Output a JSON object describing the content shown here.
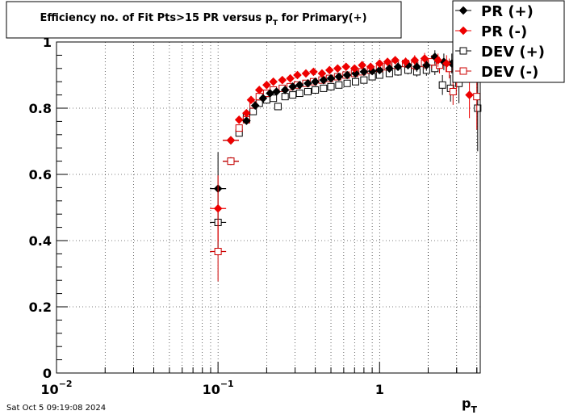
{
  "timestamp": "Sat Oct  5 09:19:08 2024",
  "chart_data": {
    "type": "scatter",
    "title": "Efficiency no. of Fit Pts>15 PR versus p",
    "title_sub": "T",
    "title_rest": " for Primary(+)",
    "xlabel": "p",
    "xlabel_sub": "T",
    "ylabel": "",
    "xscale": "log",
    "xlim": [
      0.01,
      4.2
    ],
    "ylim": [
      0,
      1.0
    ],
    "grid": true,
    "legend_position": "top-right",
    "x_ticks": [
      {
        "base": "10",
        "exp": "−2",
        "value": 0.01
      },
      {
        "base": "10",
        "exp": "−1",
        "value": 0.1
      },
      {
        "base": "1",
        "exp": "",
        "value": 1
      }
    ],
    "y_ticks": [
      {
        "label": "0",
        "value": 0
      },
      {
        "label": "0.2",
        "value": 0.2
      },
      {
        "label": "0.4",
        "value": 0.4
      },
      {
        "label": "0.6",
        "value": 0.6
      },
      {
        "label": "0.8",
        "value": 0.8
      },
      {
        "label": "1",
        "value": 1.0
      }
    ],
    "series": [
      {
        "name": "PR (+)",
        "color": "#000000",
        "marker": "diamond",
        "filled": true,
        "points": [
          {
            "x": 0.1,
            "y": 0.557,
            "err": 0.11
          },
          {
            "x": 0.12,
            "y": 0.703,
            "err": 0.012
          },
          {
            "x": 0.15,
            "y": 0.762,
            "err": 0.01
          },
          {
            "x": 0.17,
            "y": 0.808,
            "err": 0.01
          },
          {
            "x": 0.19,
            "y": 0.83,
            "err": 0.008
          },
          {
            "x": 0.21,
            "y": 0.845,
            "err": 0.008
          },
          {
            "x": 0.23,
            "y": 0.85,
            "err": 0.008
          },
          {
            "x": 0.26,
            "y": 0.855,
            "err": 0.008
          },
          {
            "x": 0.29,
            "y": 0.865,
            "err": 0.007
          },
          {
            "x": 0.32,
            "y": 0.87,
            "err": 0.007
          },
          {
            "x": 0.36,
            "y": 0.875,
            "err": 0.007
          },
          {
            "x": 0.4,
            "y": 0.88,
            "err": 0.007
          },
          {
            "x": 0.45,
            "y": 0.885,
            "err": 0.007
          },
          {
            "x": 0.5,
            "y": 0.89,
            "err": 0.007
          },
          {
            "x": 0.56,
            "y": 0.895,
            "err": 0.008
          },
          {
            "x": 0.63,
            "y": 0.9,
            "err": 0.008
          },
          {
            "x": 0.71,
            "y": 0.905,
            "err": 0.008
          },
          {
            "x": 0.8,
            "y": 0.91,
            "err": 0.009
          },
          {
            "x": 0.9,
            "y": 0.912,
            "err": 0.009
          },
          {
            "x": 1.0,
            "y": 0.915,
            "err": 0.01
          },
          {
            "x": 1.15,
            "y": 0.92,
            "err": 0.011
          },
          {
            "x": 1.3,
            "y": 0.925,
            "err": 0.012
          },
          {
            "x": 1.5,
            "y": 0.93,
            "err": 0.013
          },
          {
            "x": 1.7,
            "y": 0.925,
            "err": 0.015
          },
          {
            "x": 1.95,
            "y": 0.93,
            "err": 0.017
          },
          {
            "x": 2.2,
            "y": 0.955,
            "err": 0.02
          },
          {
            "x": 2.5,
            "y": 0.94,
            "err": 0.025
          },
          {
            "x": 2.8,
            "y": 0.935,
            "err": 0.03
          },
          {
            "x": 3.2,
            "y": 0.95,
            "err": 0.04
          }
        ]
      },
      {
        "name": "PR (-)",
        "color": "#ee0000",
        "marker": "diamond",
        "filled": true,
        "points": [
          {
            "x": 0.1,
            "y": 0.497,
            "err": 0.1
          },
          {
            "x": 0.12,
            "y": 0.703,
            "err": 0.012
          },
          {
            "x": 0.135,
            "y": 0.765,
            "err": 0.01
          },
          {
            "x": 0.15,
            "y": 0.785,
            "err": 0.01
          },
          {
            "x": 0.16,
            "y": 0.825,
            "err": 0.009
          },
          {
            "x": 0.18,
            "y": 0.855,
            "err": 0.008
          },
          {
            "x": 0.2,
            "y": 0.87,
            "err": 0.008
          },
          {
            "x": 0.22,
            "y": 0.88,
            "err": 0.008
          },
          {
            "x": 0.25,
            "y": 0.885,
            "err": 0.008
          },
          {
            "x": 0.28,
            "y": 0.89,
            "err": 0.007
          },
          {
            "x": 0.31,
            "y": 0.9,
            "err": 0.007
          },
          {
            "x": 0.35,
            "y": 0.905,
            "err": 0.007
          },
          {
            "x": 0.39,
            "y": 0.91,
            "err": 0.007
          },
          {
            "x": 0.44,
            "y": 0.905,
            "err": 0.007
          },
          {
            "x": 0.49,
            "y": 0.915,
            "err": 0.007
          },
          {
            "x": 0.55,
            "y": 0.92,
            "err": 0.008
          },
          {
            "x": 0.62,
            "y": 0.925,
            "err": 0.008
          },
          {
            "x": 0.7,
            "y": 0.92,
            "err": 0.008
          },
          {
            "x": 0.78,
            "y": 0.93,
            "err": 0.009
          },
          {
            "x": 0.88,
            "y": 0.925,
            "err": 0.009
          },
          {
            "x": 1.0,
            "y": 0.935,
            "err": 0.01
          },
          {
            "x": 1.12,
            "y": 0.94,
            "err": 0.011
          },
          {
            "x": 1.25,
            "y": 0.945,
            "err": 0.012
          },
          {
            "x": 1.45,
            "y": 0.94,
            "err": 0.013
          },
          {
            "x": 1.65,
            "y": 0.945,
            "err": 0.015
          },
          {
            "x": 1.9,
            "y": 0.95,
            "err": 0.017
          },
          {
            "x": 2.3,
            "y": 0.945,
            "err": 0.02
          },
          {
            "x": 2.6,
            "y": 0.935,
            "err": 0.025
          },
          {
            "x": 3.0,
            "y": 0.9,
            "err": 0.04
          },
          {
            "x": 3.6,
            "y": 0.84,
            "err": 0.07
          }
        ]
      },
      {
        "name": "DEV (+)",
        "color": "#000000",
        "marker": "square",
        "filled": false,
        "points": [
          {
            "x": 0.1,
            "y": 0.455,
            "err": 0.1
          },
          {
            "x": 0.12,
            "y": 0.64,
            "err": 0.012
          },
          {
            "x": 0.135,
            "y": 0.725,
            "err": 0.01
          },
          {
            "x": 0.15,
            "y": 0.775,
            "err": 0.01
          },
          {
            "x": 0.165,
            "y": 0.79,
            "err": 0.009
          },
          {
            "x": 0.18,
            "y": 0.815,
            "err": 0.008
          },
          {
            "x": 0.2,
            "y": 0.825,
            "err": 0.008
          },
          {
            "x": 0.22,
            "y": 0.83,
            "err": 0.008
          },
          {
            "x": 0.235,
            "y": 0.805,
            "err": 0.008
          },
          {
            "x": 0.26,
            "y": 0.835,
            "err": 0.008
          },
          {
            "x": 0.29,
            "y": 0.84,
            "err": 0.007
          },
          {
            "x": 0.32,
            "y": 0.845,
            "err": 0.007
          },
          {
            "x": 0.36,
            "y": 0.85,
            "err": 0.007
          },
          {
            "x": 0.4,
            "y": 0.855,
            "err": 0.007
          },
          {
            "x": 0.45,
            "y": 0.86,
            "err": 0.007
          },
          {
            "x": 0.5,
            "y": 0.865,
            "err": 0.007
          },
          {
            "x": 0.56,
            "y": 0.87,
            "err": 0.008
          },
          {
            "x": 0.63,
            "y": 0.875,
            "err": 0.008
          },
          {
            "x": 0.71,
            "y": 0.88,
            "err": 0.008
          },
          {
            "x": 0.8,
            "y": 0.885,
            "err": 0.009
          },
          {
            "x": 0.9,
            "y": 0.895,
            "err": 0.009
          },
          {
            "x": 1.0,
            "y": 0.9,
            "err": 0.01
          },
          {
            "x": 1.15,
            "y": 0.905,
            "err": 0.011
          },
          {
            "x": 1.3,
            "y": 0.91,
            "err": 0.012
          },
          {
            "x": 1.5,
            "y": 0.915,
            "err": 0.013
          },
          {
            "x": 1.7,
            "y": 0.91,
            "err": 0.015
          },
          {
            "x": 1.95,
            "y": 0.915,
            "err": 0.017
          },
          {
            "x": 2.2,
            "y": 0.92,
            "err": 0.02
          },
          {
            "x": 2.45,
            "y": 0.87,
            "err": 0.03
          },
          {
            "x": 2.75,
            "y": 0.86,
            "err": 0.04
          },
          {
            "x": 3.1,
            "y": 0.875,
            "err": 0.06
          },
          {
            "x": 4.05,
            "y": 0.8,
            "err": 0.13
          }
        ]
      },
      {
        "name": "DEV (-)",
        "color": "#cc0000",
        "marker": "square",
        "filled": false,
        "points": [
          {
            "x": 0.1,
            "y": 0.367,
            "err": 0.09
          },
          {
            "x": 0.12,
            "y": 0.64,
            "err": 0.012
          },
          {
            "x": 0.135,
            "y": 0.74,
            "err": 0.01
          },
          {
            "x": 0.15,
            "y": 0.765,
            "err": 0.01
          },
          {
            "x": 0.165,
            "y": 0.81,
            "err": 0.009
          },
          {
            "x": 0.18,
            "y": 0.835,
            "err": 0.008
          },
          {
            "x": 0.2,
            "y": 0.845,
            "err": 0.008
          },
          {
            "x": 0.22,
            "y": 0.855,
            "err": 0.008
          },
          {
            "x": 0.25,
            "y": 0.86,
            "err": 0.008
          },
          {
            "x": 0.28,
            "y": 0.865,
            "err": 0.007
          },
          {
            "x": 0.31,
            "y": 0.87,
            "err": 0.007
          },
          {
            "x": 0.35,
            "y": 0.875,
            "err": 0.007
          },
          {
            "x": 0.39,
            "y": 0.88,
            "err": 0.007
          },
          {
            "x": 0.44,
            "y": 0.885,
            "err": 0.007
          },
          {
            "x": 0.49,
            "y": 0.89,
            "err": 0.007
          },
          {
            "x": 0.55,
            "y": 0.895,
            "err": 0.008
          },
          {
            "x": 0.62,
            "y": 0.9,
            "err": 0.008
          },
          {
            "x": 0.7,
            "y": 0.905,
            "err": 0.008
          },
          {
            "x": 0.78,
            "y": 0.91,
            "err": 0.009
          },
          {
            "x": 0.88,
            "y": 0.915,
            "err": 0.009
          },
          {
            "x": 1.0,
            "y": 0.92,
            "err": 0.01
          },
          {
            "x": 1.12,
            "y": 0.925,
            "err": 0.011
          },
          {
            "x": 1.25,
            "y": 0.93,
            "err": 0.012
          },
          {
            "x": 1.45,
            "y": 0.935,
            "err": 0.013
          },
          {
            "x": 1.65,
            "y": 0.93,
            "err": 0.015
          },
          {
            "x": 1.9,
            "y": 0.935,
            "err": 0.017
          },
          {
            "x": 2.1,
            "y": 0.94,
            "err": 0.02
          },
          {
            "x": 2.35,
            "y": 0.93,
            "err": 0.025
          },
          {
            "x": 2.7,
            "y": 0.92,
            "err": 0.03
          },
          {
            "x": 2.85,
            "y": 0.85,
            "err": 0.04
          },
          {
            "x": 4.0,
            "y": 0.835,
            "err": 0.1
          }
        ]
      }
    ]
  }
}
